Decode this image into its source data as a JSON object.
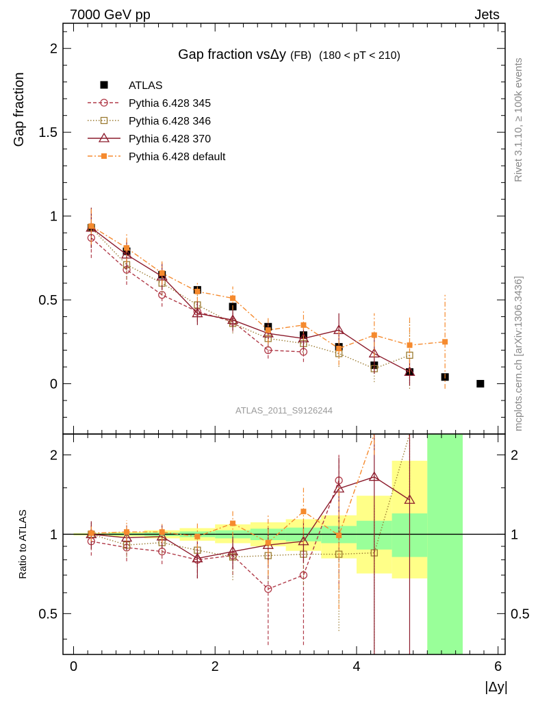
{
  "header": {
    "energy_label": "7000 GeV pp",
    "process_label": "Jets",
    "side_version": "Rivet 3.1.10, ≥ 100k events",
    "side_source": "mcplots.cern.ch [arXiv:1306.3436]",
    "analysis_id": "ATLAS_2011_S9126244"
  },
  "chart_data": [
    {
      "type": "line",
      "panel": "main",
      "title": "Gap fraction vsΔy",
      "title_suffix": "(FB)",
      "title_cut": "(180 < pT < 210)",
      "ylabel": "Gap fraction",
      "xlabel": "",
      "xlim": [
        -0.15,
        6.1
      ],
      "ylim": [
        -0.3,
        2.15
      ],
      "yticks": [
        0,
        0.5,
        1,
        1.5,
        2
      ],
      "ytick_labels": [
        "0",
        "0.5",
        "1",
        "1.5",
        "2"
      ],
      "legend": "top-left",
      "series": [
        {
          "name": "ATLAS",
          "color": "#000000",
          "marker": "filled-square",
          "style": "points",
          "x": [
            0.25,
            0.75,
            1.25,
            1.75,
            2.25,
            2.75,
            3.25,
            3.75,
            4.25,
            4.75,
            5.25,
            5.75
          ],
          "y": [
            0.93,
            0.79,
            0.65,
            0.56,
            0.46,
            0.34,
            0.29,
            0.22,
            0.11,
            0.07,
            0.04,
            0.0
          ],
          "err": [
            0.01,
            0.01,
            0.01,
            0.01,
            0.015,
            0.02,
            0.02,
            0.02,
            0.02,
            0.02,
            0.015,
            0.01
          ]
        },
        {
          "name": "Pythia 6.428 345",
          "color": "#b03a48",
          "marker": "open-circle",
          "style": "dashed",
          "x": [
            0.25,
            0.75,
            1.25,
            1.75,
            2.25,
            2.75,
            3.25
          ],
          "y": [
            0.87,
            0.68,
            0.53,
            0.43,
            0.37,
            0.2,
            0.19
          ],
          "err": [
            0.12,
            0.09,
            0.07,
            0.06,
            0.06,
            0.05,
            0.06
          ]
        },
        {
          "name": "Pythia 6.428 346",
          "color": "#9a7a30",
          "marker": "open-square",
          "style": "dotted",
          "x": [
            0.25,
            0.75,
            1.25,
            1.75,
            2.25,
            2.75,
            3.25,
            3.75,
            4.25,
            4.75
          ],
          "y": [
            0.93,
            0.71,
            0.6,
            0.47,
            0.36,
            0.27,
            0.24,
            0.18,
            0.09,
            0.17
          ],
          "err": [
            0.12,
            0.09,
            0.07,
            0.06,
            0.06,
            0.05,
            0.06,
            0.08,
            0.08,
            0.2
          ]
        },
        {
          "name": "Pythia 6.428 370",
          "color": "#8b1a2b",
          "marker": "open-triangle",
          "style": "solid",
          "x": [
            0.25,
            0.75,
            1.25,
            1.75,
            2.25,
            2.75,
            3.25,
            3.75,
            4.25,
            4.75
          ],
          "y": [
            0.93,
            0.77,
            0.64,
            0.42,
            0.38,
            0.3,
            0.27,
            0.32,
            0.18,
            0.07
          ],
          "err": [
            0.12,
            0.09,
            0.08,
            0.07,
            0.06,
            0.06,
            0.07,
            0.1,
            0.12,
            0.08
          ]
        },
        {
          "name": "Pythia 6.428 default",
          "color": "#f58a2e",
          "marker": "filled-small-square",
          "style": "dashdot",
          "x": [
            0.25,
            0.75,
            1.25,
            1.75,
            2.25,
            2.75,
            3.25,
            3.75,
            4.25,
            4.75,
            5.25
          ],
          "y": [
            0.94,
            0.81,
            0.66,
            0.55,
            0.51,
            0.32,
            0.35,
            0.21,
            0.29,
            0.23,
            0.25
          ],
          "err": [
            0.11,
            0.09,
            0.07,
            0.06,
            0.07,
            0.08,
            0.09,
            0.1,
            0.13,
            0.17,
            0.28
          ]
        }
      ]
    },
    {
      "type": "line",
      "panel": "ratio",
      "ylabel": "Ratio to ATLAS",
      "xlabel": "|Δy|",
      "xlim": [
        -0.15,
        6.1
      ],
      "ylim": [
        0.35,
        2.4
      ],
      "yscale": "log",
      "xticks": [
        0,
        2,
        4,
        6
      ],
      "xtick_labels": [
        "0",
        "2",
        "4",
        "6"
      ],
      "yticks": [
        0.5,
        1,
        2
      ],
      "ytick_labels": [
        "0.5",
        "1",
        "2"
      ],
      "reference_line": 1,
      "bands": {
        "x_edges": [
          0.0,
          0.5,
          1.0,
          1.5,
          2.0,
          2.5,
          3.0,
          3.5,
          4.0,
          4.5,
          5.0,
          5.5
        ],
        "inner_color": "#99ff99",
        "outer_color": "#ffff88",
        "inner_low": [
          0.995,
          0.99,
          0.985,
          0.975,
          0.965,
          0.95,
          0.94,
          0.925,
          0.875,
          0.82,
          0.25
        ],
        "inner_high": [
          1.005,
          1.01,
          1.015,
          1.025,
          1.035,
          1.05,
          1.06,
          1.075,
          1.125,
          1.2,
          3.0
        ],
        "outer_low": [
          0.99,
          0.98,
          0.965,
          0.945,
          0.925,
          0.9,
          0.865,
          0.81,
          0.71,
          0.68,
          0.25
        ],
        "outer_high": [
          1.01,
          1.02,
          1.035,
          1.055,
          1.09,
          1.11,
          1.14,
          1.18,
          1.4,
          1.9,
          3.0
        ]
      },
      "series": [
        {
          "name": "Pythia 6.428 345",
          "color": "#b03a48",
          "marker": "open-circle",
          "style": "dashed",
          "x": [
            0.25,
            0.75,
            1.25,
            1.75,
            2.25,
            2.75,
            3.25,
            3.75
          ],
          "y": [
            0.94,
            0.89,
            0.86,
            0.8,
            0.83,
            0.62,
            0.7,
            1.6
          ],
          "lo": [
            0.83,
            0.79,
            0.77,
            0.68,
            0.7,
            0.38,
            0.38,
            0.62
          ],
          "hi": [
            1.08,
            0.99,
            0.95,
            0.92,
            0.96,
            0.85,
            1.02,
            2.0
          ]
        },
        {
          "name": "Pythia 6.428 346",
          "color": "#9a7a30",
          "marker": "open-square",
          "style": "dotted",
          "x": [
            0.25,
            0.75,
            1.25,
            1.75,
            2.25,
            2.75,
            3.25,
            3.75,
            4.25,
            4.75
          ],
          "y": [
            1.0,
            0.91,
            0.93,
            0.87,
            0.82,
            0.83,
            0.84,
            0.84,
            0.85,
            2.4
          ],
          "lo": [
            0.88,
            0.82,
            0.84,
            0.75,
            0.67,
            0.66,
            0.64,
            0.43,
            0.3,
            1.4
          ],
          "hi": [
            1.12,
            1.0,
            1.02,
            0.99,
            0.96,
            1.0,
            1.04,
            1.26,
            1.3,
            2.4
          ]
        },
        {
          "name": "Pythia 6.428 370",
          "color": "#8b1a2b",
          "marker": "open-triangle",
          "style": "solid",
          "x": [
            0.25,
            0.75,
            1.25,
            1.75,
            2.25,
            2.75,
            3.25,
            3.75,
            4.25,
            4.75
          ],
          "y": [
            1.0,
            0.97,
            0.98,
            0.81,
            0.86,
            0.91,
            0.94,
            1.49,
            1.65,
            1.35
          ],
          "lo": [
            0.88,
            0.87,
            0.88,
            0.68,
            0.74,
            0.77,
            0.78,
            1.0,
            0.3,
            0.3
          ],
          "hi": [
            1.12,
            1.08,
            1.08,
            0.94,
            0.98,
            1.06,
            1.12,
            1.95,
            2.4,
            2.4
          ]
        },
        {
          "name": "Pythia 6.428 default",
          "color": "#f58a2e",
          "marker": "filled-small-square",
          "style": "dashdot",
          "x": [
            0.25,
            0.75,
            1.25,
            1.75,
            2.25,
            2.75,
            3.25,
            3.75,
            4.25
          ],
          "y": [
            1.01,
            1.02,
            1.02,
            0.98,
            1.1,
            0.93,
            1.22,
            0.99,
            2.4
          ],
          "lo": [
            0.94,
            0.94,
            0.93,
            0.88,
            0.98,
            0.7,
            0.92,
            0.52,
            2.0
          ],
          "hi": [
            1.07,
            1.13,
            1.11,
            1.1,
            1.24,
            1.18,
            1.5,
            1.5,
            2.4
          ]
        }
      ]
    }
  ]
}
